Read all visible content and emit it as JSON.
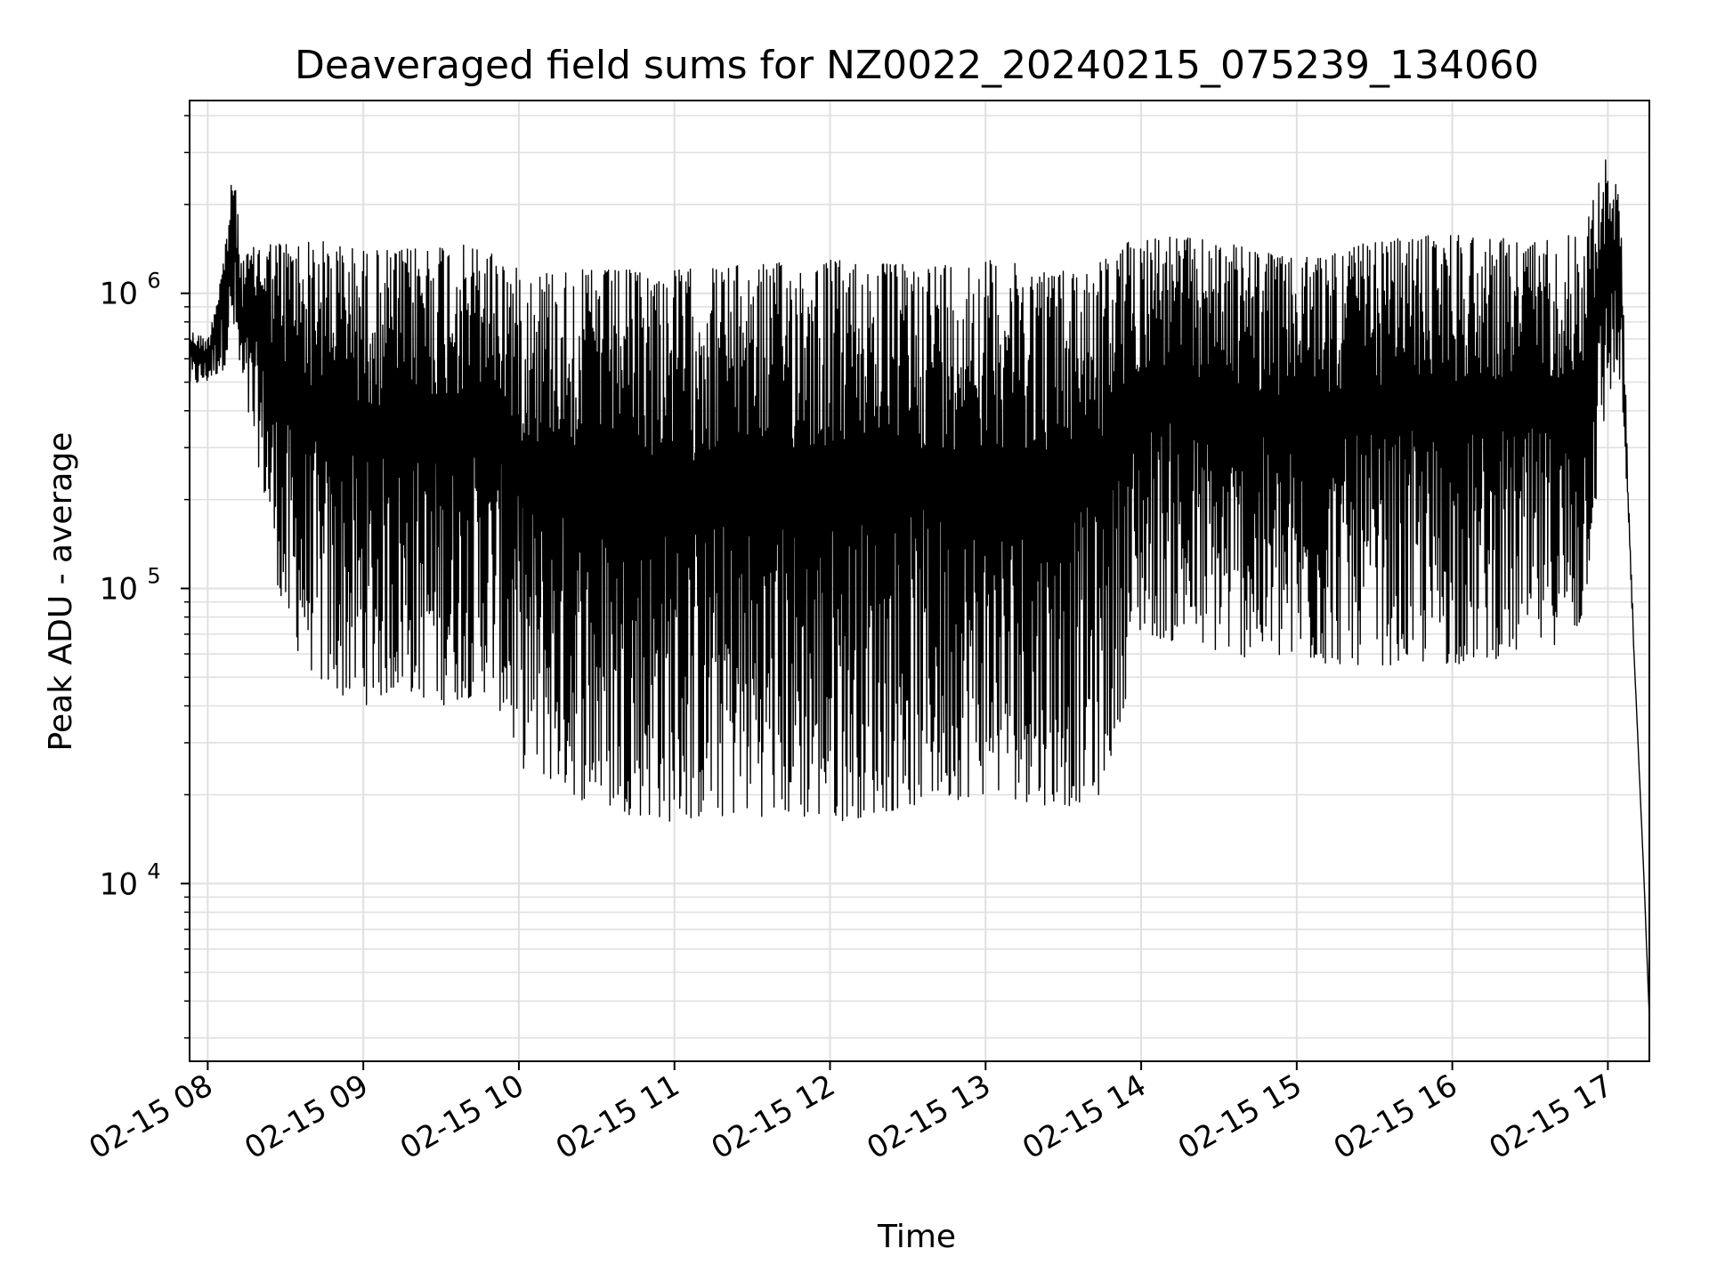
{
  "chart_data": {
    "type": "line",
    "title": "Deaveraged field sums for NZ0022_20240215_075239_134060",
    "xlabel": "Time",
    "ylabel": "Peak ADU - average",
    "yscale": "log",
    "ylim": [
      2500,
      4500000
    ],
    "xlim": [
      "2024-02-15T07:53:00",
      "2024-02-15T17:16:00"
    ],
    "x_ticks": [
      {
        "t": "2024-02-15T08:00:00",
        "label": "02-15 08"
      },
      {
        "t": "2024-02-15T09:00:00",
        "label": "02-15 09"
      },
      {
        "t": "2024-02-15T10:00:00",
        "label": "02-15 10"
      },
      {
        "t": "2024-02-15T11:00:00",
        "label": "02-15 11"
      },
      {
        "t": "2024-02-15T12:00:00",
        "label": "02-15 12"
      },
      {
        "t": "2024-02-15T13:00:00",
        "label": "02-15 13"
      },
      {
        "t": "2024-02-15T14:00:00",
        "label": "02-15 14"
      },
      {
        "t": "2024-02-15T15:00:00",
        "label": "02-15 15"
      },
      {
        "t": "2024-02-15T16:00:00",
        "label": "02-15 16"
      },
      {
        "t": "2024-02-15T17:00:00",
        "label": "02-15 17"
      }
    ],
    "y_ticks": [
      {
        "value": 10000,
        "base": "10",
        "exp": "4"
      },
      {
        "value": 100000,
        "base": "10",
        "exp": "5"
      },
      {
        "value": 1000000,
        "base": "10",
        "exp": "6"
      }
    ],
    "grid": true,
    "line_color": "#000000",
    "grid_color": "#e0e0e0",
    "series": [
      {
        "x": [
          "2024-02-15T07:53:00",
          "2024-02-15T08:00:00",
          "2024-02-15T08:06:00",
          "2024-02-15T08:10:00",
          "2024-02-15T08:13:00",
          "2024-02-15T08:20:00",
          "2024-02-15T08:30:00",
          "2024-02-15T08:45:00",
          "2024-02-15T09:00:00",
          "2024-02-15T09:15:00",
          "2024-02-15T09:30:00",
          "2024-02-15T09:50:00",
          "2024-02-15T10:00:00",
          "2024-02-15T10:30:00",
          "2024-02-15T11:00:00",
          "2024-02-15T11:30:00",
          "2024-02-15T12:00:00",
          "2024-02-15T12:30:00",
          "2024-02-15T13:00:00",
          "2024-02-15T13:30:00",
          "2024-02-15T13:45:00",
          "2024-02-15T14:00:00",
          "2024-02-15T14:30:00",
          "2024-02-15T15:00:00",
          "2024-02-15T15:30:00",
          "2024-02-15T16:00:00",
          "2024-02-15T16:30:00",
          "2024-02-15T16:50:00",
          "2024-02-15T17:00:00",
          "2024-02-15T17:05:00",
          "2024-02-15T17:08:00",
          "2024-02-15T17:11:00",
          "2024-02-15T17:14:00",
          "2024-02-15T17:16:00"
        ],
        "low": [
          480000,
          500000,
          550000,
          700000,
          450000,
          250000,
          70000,
          45000,
          40000,
          45000,
          40000,
          45000,
          25000,
          18000,
          16000,
          17000,
          16000,
          18000,
          20000,
          18000,
          20000,
          70000,
          60000,
          55000,
          55000,
          55000,
          60000,
          70000,
          450000,
          500000,
          150000,
          40000,
          10000,
          3500
        ],
        "high": [
          750000,
          700000,
          1300000,
          2800000,
          1300000,
          1500000,
          1500000,
          1500000,
          1400000,
          1400000,
          1500000,
          1400000,
          1200000,
          1200000,
          1200000,
          1250000,
          1300000,
          1250000,
          1300000,
          1200000,
          1300000,
          1600000,
          1500000,
          1300000,
          1500000,
          1600000,
          1500000,
          1600000,
          3000000,
          2000000,
          200000,
          40000,
          10000,
          3500
        ]
      }
    ]
  }
}
